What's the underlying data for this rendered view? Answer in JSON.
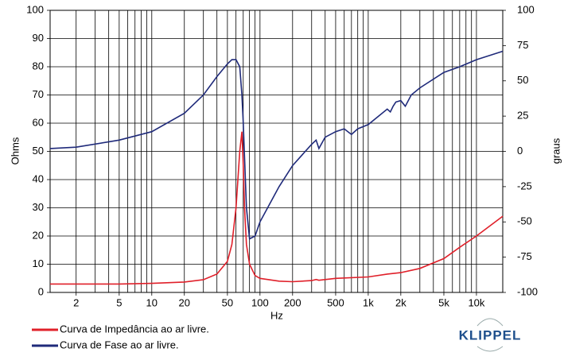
{
  "chart_data": {
    "type": "line",
    "x_label": "Hz",
    "y_label": "Ohms",
    "y2_label": "graus",
    "logx": true,
    "xlim": [
      1.15,
      17500
    ],
    "xticks": [
      2,
      5,
      10,
      20,
      50,
      100,
      200,
      500,
      {
        "value": 1000,
        "label": "1k"
      },
      {
        "value": 2000,
        "label": "2k"
      },
      {
        "value": 5000,
        "label": "5k"
      },
      {
        "value": 10000,
        "label": "10k"
      }
    ],
    "xgrid": [
      2,
      3,
      4,
      5,
      6,
      7,
      8,
      9,
      10,
      20,
      30,
      40,
      50,
      60,
      70,
      80,
      90,
      100,
      200,
      300,
      400,
      500,
      600,
      700,
      800,
      900,
      1000,
      2000,
      3000,
      4000,
      5000,
      6000,
      7000,
      8000,
      9000,
      10000
    ],
    "ylim": [
      0,
      100
    ],
    "yticks": [
      0,
      10,
      20,
      30,
      40,
      50,
      60,
      70,
      80,
      90,
      100
    ],
    "y2lim": [
      -100,
      100
    ],
    "y2ticks": [
      -100,
      -75,
      -50,
      -25,
      0,
      25,
      50,
      75,
      100
    ],
    "grid": true,
    "series": [
      {
        "name": "Curva de Impedância ao ar livre.",
        "color": "#e0202a",
        "x": [
          1.15,
          2,
          5,
          10,
          20,
          30,
          40,
          50,
          55,
          60,
          65,
          68,
          70,
          72,
          75,
          80,
          90,
          100,
          150,
          200,
          300,
          330,
          350,
          500,
          1000,
          1500,
          2000,
          3000,
          5000,
          7000,
          10000,
          17500
        ],
        "values": [
          3,
          3,
          3,
          3.2,
          3.7,
          4.5,
          6.5,
          11,
          17,
          30,
          50,
          57,
          45,
          30,
          17,
          10,
          6,
          5,
          4,
          3.8,
          4.2,
          4.6,
          4.3,
          5,
          5.5,
          6.5,
          7,
          8.5,
          12,
          16,
          20,
          27
        ]
      },
      {
        "name": "Curva de Fase ao ar livre.",
        "color": "#1f2a7a",
        "axis": "y2",
        "x": [
          1.15,
          2,
          5,
          10,
          20,
          30,
          40,
          50,
          55,
          60,
          65,
          68,
          70,
          75,
          80,
          90,
          100,
          150,
          200,
          300,
          330,
          350,
          400,
          500,
          600,
          700,
          800,
          1000,
          1500,
          1600,
          1700,
          1800,
          2000,
          2200,
          2500,
          3000,
          5000,
          7000,
          10000,
          17500
        ],
        "values": [
          2,
          3,
          8,
          14,
          27,
          40,
          53,
          62,
          65,
          65,
          60,
          40,
          20,
          -40,
          -62,
          -60,
          -50,
          -25,
          -10,
          5,
          8,
          2,
          10,
          14,
          16,
          12,
          16,
          19,
          30,
          28,
          32,
          35,
          36,
          32,
          40,
          45,
          56,
          60,
          65,
          71
        ]
      }
    ],
    "logo": "KLIPPEL"
  }
}
